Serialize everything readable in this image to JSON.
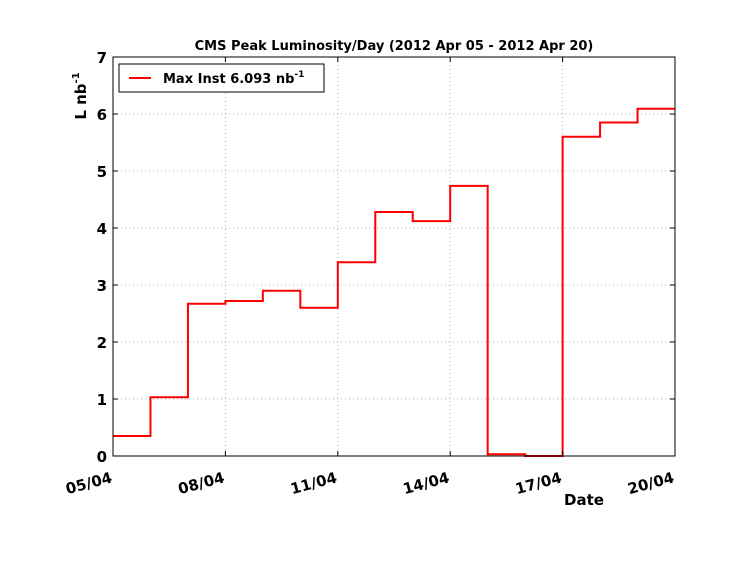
{
  "chart_data": {
    "type": "line",
    "title": "CMS Peak Luminosity/Day (2012 Apr 05 - 2012 Apr 20)",
    "xlabel": "Date",
    "ylabel_main": "L nb",
    "ylabel_exp": "-1",
    "x_tick_labels": [
      "05/04",
      "08/04",
      "11/04",
      "14/04",
      "17/04",
      "20/04"
    ],
    "x_ticks": [
      0,
      3,
      6,
      9,
      12,
      15
    ],
    "x_range": [
      0,
      15
    ],
    "y_ticks": [
      "0",
      "1",
      "2",
      "3",
      "4",
      "5",
      "6",
      "7"
    ],
    "y_range": [
      0,
      7
    ],
    "grid": true,
    "legend_position": "top-left",
    "series": [
      {
        "name_main": "Max Inst 6.093 nb",
        "name_exp": "-1",
        "color": "#ff0000",
        "step": "post",
        "x": [
          0,
          1,
          2,
          3,
          4,
          5,
          6,
          7,
          8,
          9,
          10,
          11,
          12,
          13,
          14
        ],
        "y": [
          0.35,
          1.03,
          2.67,
          2.72,
          2.9,
          2.6,
          3.4,
          4.28,
          4.12,
          4.74,
          0.03,
          0.0,
          5.6,
          5.85,
          6.093
        ]
      }
    ]
  }
}
